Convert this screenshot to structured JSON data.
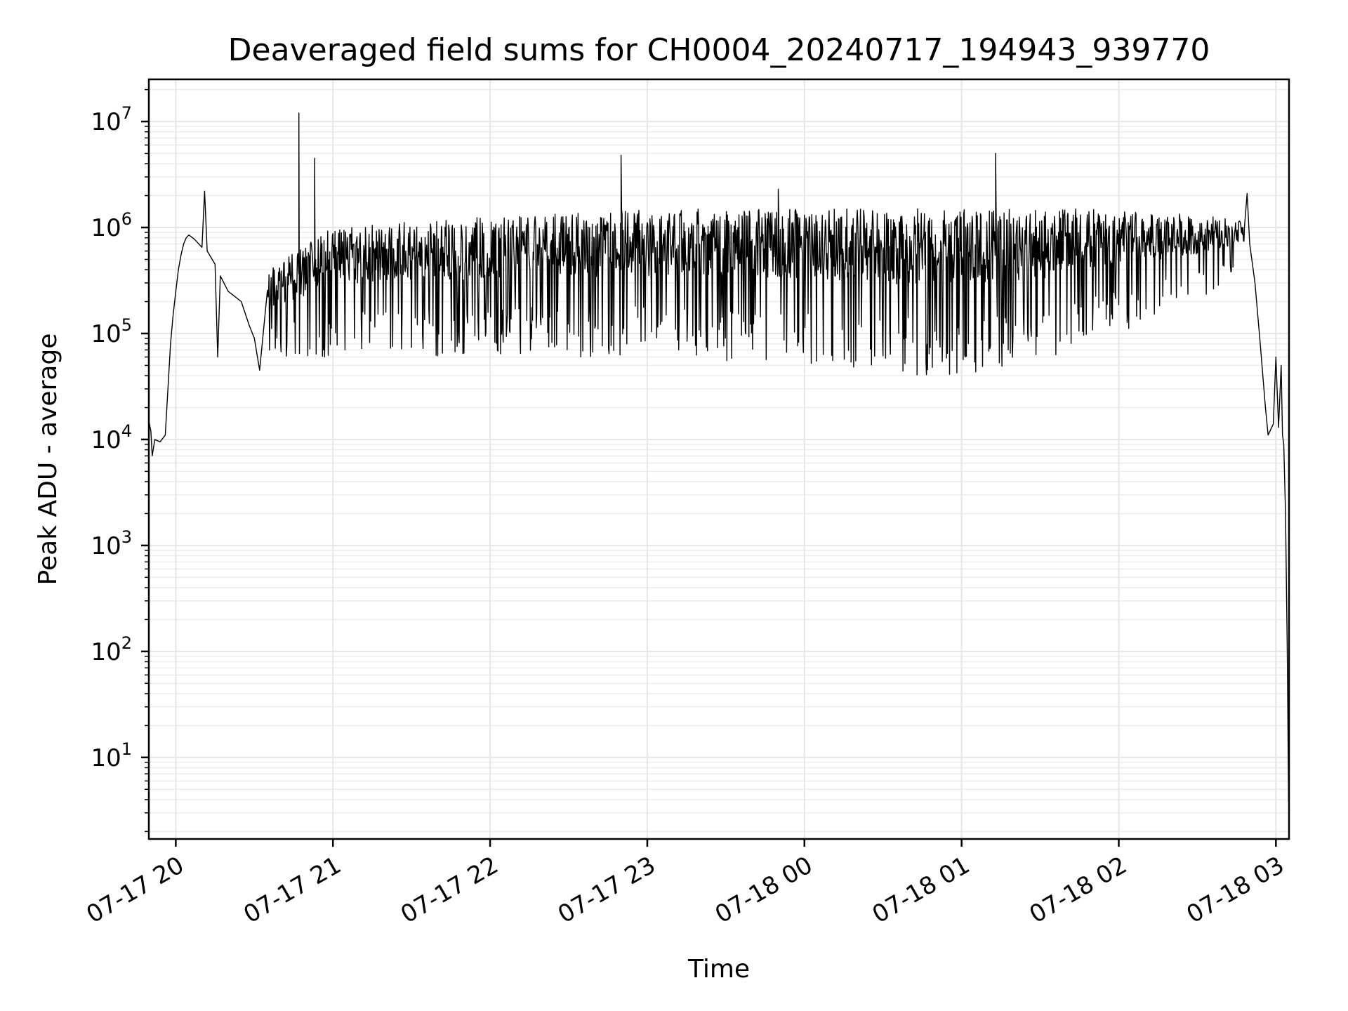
{
  "chart_data": {
    "type": "line",
    "title": "Deaveraged field sums for CH0004_20240717_194943_939770",
    "xlabel": "Time",
    "ylabel": "Peak ADU - average",
    "yscale": "log",
    "ylim": [
      1.7,
      25000000
    ],
    "xlim": [
      "2024-07-17 19:49:43",
      "2024-07-18 03:05:00"
    ],
    "y_ticks": [
      {
        "base": "10",
        "exp": "1",
        "value": 10
      },
      {
        "base": "10",
        "exp": "2",
        "value": 100
      },
      {
        "base": "10",
        "exp": "3",
        "value": 1000
      },
      {
        "base": "10",
        "exp": "4",
        "value": 10000
      },
      {
        "base": "10",
        "exp": "5",
        "value": 100000
      },
      {
        "base": "10",
        "exp": "6",
        "value": 1000000
      },
      {
        "base": "10",
        "exp": "7",
        "value": 10000000
      }
    ],
    "x_ticks": [
      {
        "label": "07-17 20",
        "time": "2024-07-17 20:00"
      },
      {
        "label": "07-17 21",
        "time": "2024-07-17 21:00"
      },
      {
        "label": "07-17 22",
        "time": "2024-07-17 22:00"
      },
      {
        "label": "07-17 23",
        "time": "2024-07-17 23:00"
      },
      {
        "label": "07-18 00",
        "time": "2024-07-18 00:00"
      },
      {
        "label": "07-18 01",
        "time": "2024-07-18 01:00"
      },
      {
        "label": "07-18 02",
        "time": "2024-07-18 02:00"
      },
      {
        "label": "07-18 03",
        "time": "2024-07-18 03:00"
      }
    ],
    "grid": true,
    "line_color": "#000000",
    "series": [
      {
        "points": [
          [
            "2024-07-17 19:49:43",
            15000
          ],
          [
            "2024-07-17 19:50:30",
            12000
          ],
          [
            "2024-07-17 19:51:00",
            7000
          ],
          [
            "2024-07-17 19:52:00",
            10000
          ],
          [
            "2024-07-17 19:54:00",
            9500
          ],
          [
            "2024-07-17 19:56:00",
            11000
          ],
          [
            "2024-07-17 19:57:00",
            30000
          ],
          [
            "2024-07-17 19:58:00",
            80000
          ],
          [
            "2024-07-17 19:59:00",
            150000
          ],
          [
            "2024-07-17 20:00:00",
            250000
          ],
          [
            "2024-07-17 20:01:00",
            400000
          ],
          [
            "2024-07-17 20:02:00",
            550000
          ],
          [
            "2024-07-17 20:03:00",
            700000
          ],
          [
            "2024-07-17 20:04:00",
            800000
          ],
          [
            "2024-07-17 20:05:00",
            850000
          ],
          [
            "2024-07-17 20:07:00",
            780000
          ],
          [
            "2024-07-17 20:10:00",
            650000
          ],
          [
            "2024-07-17 20:11:00",
            2200000
          ],
          [
            "2024-07-17 20:12:00",
            600000
          ],
          [
            "2024-07-17 20:15:00",
            450000
          ],
          [
            "2024-07-17 20:16:00",
            60000
          ],
          [
            "2024-07-17 20:17:00",
            350000
          ],
          [
            "2024-07-17 20:20:00",
            250000
          ],
          [
            "2024-07-17 20:25:00",
            200000
          ],
          [
            "2024-07-17 20:28:00",
            120000
          ],
          [
            "2024-07-17 20:30:00",
            90000
          ],
          [
            "2024-07-17 20:32:00",
            45000
          ],
          [
            "2024-07-17 20:35:00",
            300000
          ],
          [
            "2024-07-17 20:38:00",
            200000
          ],
          [
            "2024-07-17 20:40:00",
            900000
          ],
          [
            "2024-07-17 20:45:00",
            300000
          ],
          [
            "2024-07-17 20:47:00",
            12000000
          ],
          [
            "2024-07-17 20:49:00",
            400000
          ],
          [
            "2024-07-17 20:53:00",
            4500000
          ],
          [
            "2024-07-17 20:56:00",
            250000
          ],
          [
            "2024-07-17 21:05:00",
            450000
          ],
          [
            "2024-07-17 21:20:00",
            400000
          ],
          [
            "2024-07-17 21:35:00",
            450000
          ],
          [
            "2024-07-17 21:50:00",
            500000
          ],
          [
            "2024-07-17 22:05:00",
            550000
          ],
          [
            "2024-07-17 22:20:00",
            650000
          ],
          [
            "2024-07-17 22:35:00",
            700000
          ],
          [
            "2024-07-17 22:50:00",
            4800000
          ],
          [
            "2024-07-17 22:52:00",
            800000
          ],
          [
            "2024-07-17 23:10:00",
            1000000
          ],
          [
            "2024-07-17 23:30:00",
            1100000
          ],
          [
            "2024-07-17 23:50:00",
            2300000
          ],
          [
            "2024-07-17 23:52:00",
            1000000
          ],
          [
            "2024-07-18 00:15:00",
            900000
          ],
          [
            "2024-07-18 00:40:00",
            700000
          ],
          [
            "2024-07-18 01:00:00",
            800000
          ],
          [
            "2024-07-18 01:13:00",
            5000000
          ],
          [
            "2024-07-18 01:15:00",
            750000
          ],
          [
            "2024-07-18 01:40:00",
            800000
          ],
          [
            "2024-07-18 02:10:00",
            900000
          ],
          [
            "2024-07-18 02:40:00",
            850000
          ],
          [
            "2024-07-18 02:49:00",
            2100000
          ],
          [
            "2024-07-18 02:50:00",
            700000
          ],
          [
            "2024-07-18 02:52:00",
            300000
          ],
          [
            "2024-07-18 02:54:00",
            80000
          ],
          [
            "2024-07-18 02:56:00",
            20000
          ],
          [
            "2024-07-18 02:57:00",
            11000
          ],
          [
            "2024-07-18 02:59:00",
            14000
          ],
          [
            "2024-07-18 03:00:00",
            60000
          ],
          [
            "2024-07-18 03:01:00",
            13000
          ],
          [
            "2024-07-18 03:02:00",
            50000
          ],
          [
            "2024-07-18 03:02:30",
            11000
          ],
          [
            "2024-07-18 03:03:00",
            9000
          ],
          [
            "2024-07-18 03:03:40",
            2000
          ],
          [
            "2024-07-18 03:04:20",
            100
          ],
          [
            "2024-07-18 03:04:50",
            3.8
          ]
        ],
        "band": {
          "description_of_range": "dense rapid fluctuation band",
          "upper_envelope": [
            [
              "2024-07-17 20:35:00",
              400000
            ],
            [
              "2024-07-17 21:00:00",
              1000000
            ],
            [
              "2024-07-17 22:00:00",
              1300000
            ],
            [
              "2024-07-17 23:00:00",
              1500000
            ],
            [
              "2024-07-18 00:00:00",
              1500000
            ],
            [
              "2024-07-18 01:00:00",
              1500000
            ],
            [
              "2024-07-18 02:00:00",
              1500000
            ],
            [
              "2024-07-18 02:48:00",
              1200000
            ]
          ],
          "lower_envelope": [
            [
              "2024-07-17 20:35:00",
              60000
            ],
            [
              "2024-07-17 21:00:00",
              60000
            ],
            [
              "2024-07-17 22:00:00",
              60000
            ],
            [
              "2024-07-17 23:00:00",
              60000
            ],
            [
              "2024-07-18 00:00:00",
              50000
            ],
            [
              "2024-07-18 00:30:00",
              40000
            ],
            [
              "2024-07-18 01:00:00",
              40000
            ],
            [
              "2024-07-18 01:30:00",
              50000
            ],
            [
              "2024-07-18 02:00:00",
              100000
            ],
            [
              "2024-07-18 02:30:00",
              200000
            ],
            [
              "2024-07-18 02:48:00",
              400000
            ]
          ]
        }
      }
    ]
  }
}
